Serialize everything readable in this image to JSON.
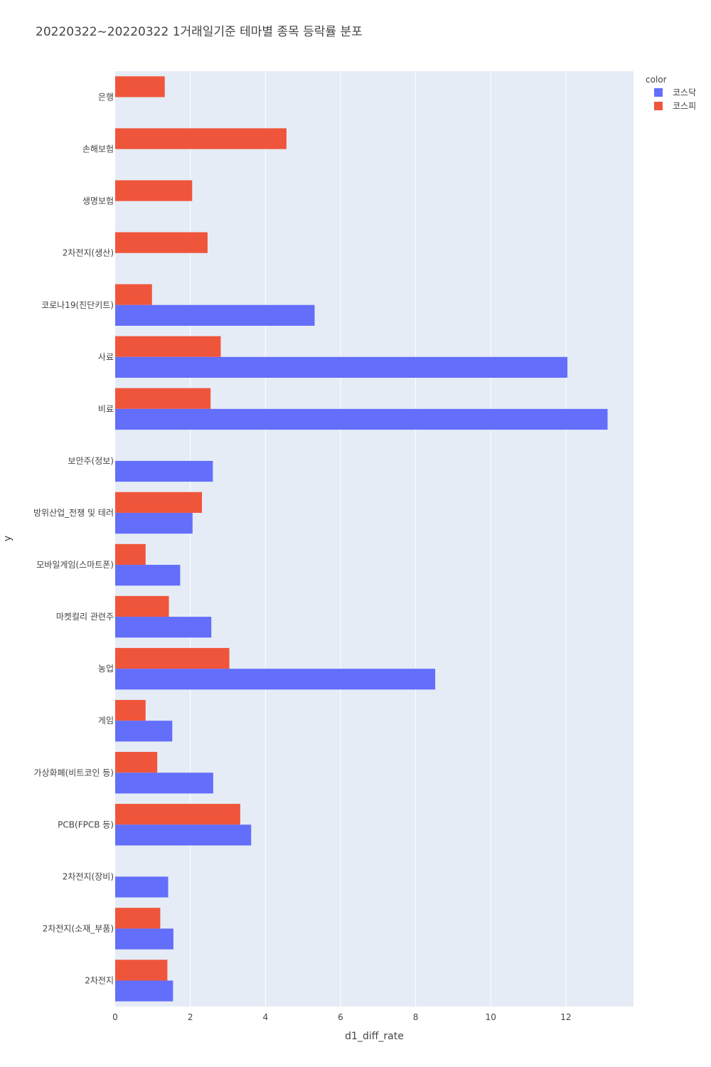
{
  "chart_data": {
    "type": "bar",
    "orientation": "horizontal",
    "barmode": "group",
    "title": "20220322~20220322 1거래일기준 테마별 종목 등락률 분포",
    "xlabel": "d1_diff_rate",
    "ylabel": "y",
    "xlim": [
      0,
      13.8
    ],
    "x_ticks": [
      0,
      2,
      4,
      6,
      8,
      10,
      12
    ],
    "x_tick_labels": [
      "0",
      "2",
      "4",
      "6",
      "8",
      "10",
      "12"
    ],
    "grid": true,
    "legend": {
      "title": "color",
      "placement": "top-right"
    },
    "categories": [
      "은행",
      "손해보험",
      "생명보험",
      "2차전지(생산)",
      "코로나19(진단키트)",
      "사료",
      "비료",
      "보안주(정보)",
      "방위산업_전쟁 및 테러",
      "모바일게임(스마트폰)",
      "마켓컬리 관련주",
      "농업",
      "게임",
      "가상화폐(비트코인 등)",
      "PCB(FPCB 등)",
      "2차전지(장비)",
      "2차전지(소재_부품)",
      "2차전지"
    ],
    "series": [
      {
        "name": "코스닥",
        "color": "#636efa",
        "values": [
          null,
          null,
          null,
          null,
          5.31,
          12.04,
          13.11,
          2.6,
          2.06,
          1.73,
          2.56,
          8.52,
          1.52,
          2.61,
          3.62,
          1.41,
          1.55,
          1.54
        ]
      },
      {
        "name": "코스피",
        "color": "#EF553B",
        "values": [
          1.32,
          4.56,
          2.05,
          2.46,
          0.98,
          2.81,
          2.54,
          null,
          2.31,
          0.81,
          1.43,
          3.04,
          0.81,
          1.12,
          3.33,
          null,
          1.2,
          1.39
        ]
      }
    ]
  }
}
